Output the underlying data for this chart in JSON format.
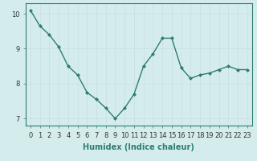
{
  "x": [
    0,
    1,
    2,
    3,
    4,
    5,
    6,
    7,
    8,
    9,
    10,
    11,
    12,
    13,
    14,
    15,
    16,
    17,
    18,
    19,
    20,
    21,
    22,
    23
  ],
  "y": [
    10.1,
    9.65,
    9.4,
    9.05,
    8.5,
    8.25,
    7.75,
    7.55,
    7.3,
    7.0,
    7.3,
    7.7,
    8.5,
    8.85,
    9.3,
    9.3,
    8.45,
    8.15,
    8.25,
    8.3,
    8.4,
    8.5,
    8.4,
    8.4
  ],
  "line_color": "#2e7d6e",
  "marker": "D",
  "markersize": 2.0,
  "linewidth": 1.0,
  "xlabel": "Humidex (Indice chaleur)",
  "ylabel": "",
  "ylim": [
    6.8,
    10.3
  ],
  "xlim": [
    -0.5,
    23.5
  ],
  "yticks": [
    7,
    8,
    9,
    10
  ],
  "xticks": [
    0,
    1,
    2,
    3,
    4,
    5,
    6,
    7,
    8,
    9,
    10,
    11,
    12,
    13,
    14,
    15,
    16,
    17,
    18,
    19,
    20,
    21,
    22,
    23
  ],
  "bg_color": "#d4edec",
  "grid_color": "#c8dede",
  "tick_label_fontsize": 6.0,
  "xlabel_fontsize": 7.0,
  "spine_color": "#2e7d6e"
}
